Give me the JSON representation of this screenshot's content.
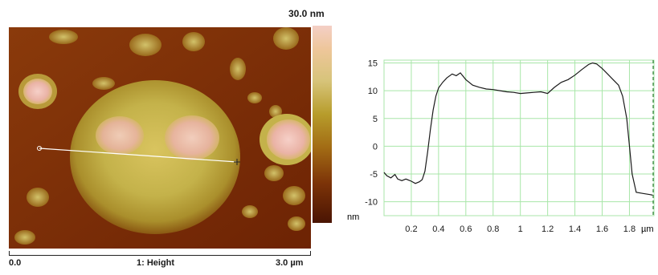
{
  "afm_image": {
    "colorbar_max": "30.0 nm",
    "scale_start": "0.0",
    "scale_end": "3.0 µm",
    "channel_label": "1: Height",
    "colors": {
      "background": "#7a2a07",
      "feature": "#c9b855",
      "peak": "#f2c3bd",
      "line": "#ffffff"
    }
  },
  "chart_data": {
    "type": "line",
    "title": "",
    "xlabel": "µm",
    "ylabel": "nm",
    "xlim": [
      0.0,
      1.98
    ],
    "ylim": [
      -12.5,
      15.5
    ],
    "xticks": [
      0.2,
      0.4,
      0.6,
      0.8,
      1.0,
      1.2,
      1.4,
      1.6,
      1.8
    ],
    "xtick_labels": [
      "0.2",
      "0.4",
      "0.6",
      "0.8",
      "1",
      "1.2",
      "1.4",
      "1.6",
      "1.8"
    ],
    "yticks": [
      15,
      10,
      5,
      0,
      -5,
      -10
    ],
    "ytick_labels": [
      "15",
      "10",
      "5",
      "0",
      "-5",
      "-10"
    ],
    "grid": true,
    "colors": {
      "grid": "#a8e6a8",
      "line": "#1a1a1a",
      "marker": "#2e7d32"
    },
    "series": [
      {
        "x": [
          0.0,
          0.02,
          0.05,
          0.08,
          0.1,
          0.13,
          0.16,
          0.2,
          0.23,
          0.26,
          0.28,
          0.3,
          0.32,
          0.34,
          0.36,
          0.38,
          0.4,
          0.43,
          0.46,
          0.5,
          0.53,
          0.56,
          0.6,
          0.65,
          0.7,
          0.75,
          0.8,
          0.85,
          0.9,
          0.95,
          1.0,
          1.05,
          1.1,
          1.15,
          1.2,
          1.25,
          1.3,
          1.35,
          1.4,
          1.45,
          1.5,
          1.53,
          1.56,
          1.6,
          1.64,
          1.68,
          1.72,
          1.75,
          1.78,
          1.8,
          1.82,
          1.85,
          1.9,
          1.95,
          1.97
        ],
        "y": [
          -4.7,
          -5.3,
          -5.7,
          -5.1,
          -5.9,
          -6.2,
          -5.9,
          -6.3,
          -6.7,
          -6.4,
          -6.0,
          -4.5,
          -1.0,
          3.0,
          6.5,
          9.0,
          10.5,
          11.5,
          12.3,
          13.0,
          12.7,
          13.2,
          12.0,
          11.0,
          10.6,
          10.3,
          10.2,
          10.0,
          9.8,
          9.7,
          9.5,
          9.6,
          9.7,
          9.8,
          9.5,
          10.6,
          11.5,
          12.0,
          12.8,
          13.8,
          14.7,
          15.0,
          14.8,
          14.0,
          13.0,
          12.0,
          11.0,
          9.0,
          5.0,
          0.0,
          -5.0,
          -8.3,
          -8.5,
          -8.7,
          -8.8
        ]
      }
    ]
  }
}
